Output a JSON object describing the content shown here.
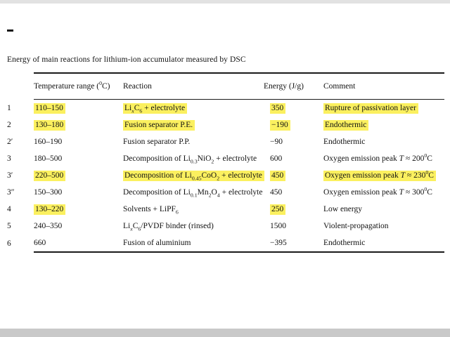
{
  "page": {
    "caption": "Energy of main reactions for lithium-ion accumulator measured by DSC",
    "highlight_color": "#fbf05f"
  },
  "table": {
    "headers": [
      {
        "key": "id",
        "segs": [
          {
            "t": ""
          }
        ]
      },
      {
        "key": "temp",
        "segs": [
          {
            "t": "Temperature range ("
          },
          {
            "t": "0",
            "s": "sup"
          },
          {
            "t": "C)"
          }
        ]
      },
      {
        "key": "reaction",
        "segs": [
          {
            "t": "Reaction"
          }
        ]
      },
      {
        "key": "energy",
        "segs": [
          {
            "t": "Energy (J/g)"
          }
        ]
      },
      {
        "key": "comment",
        "segs": [
          {
            "t": "Comment"
          }
        ]
      }
    ],
    "rows": [
      {
        "id": "1",
        "temp": "110–150",
        "temp_hl": true,
        "reaction": [
          {
            "t": "Li"
          },
          {
            "t": "x",
            "s": "sub",
            "i": true
          },
          {
            "t": "C"
          },
          {
            "t": "6",
            "s": "sub"
          },
          {
            "t": " + electrolyte"
          }
        ],
        "reaction_hl": true,
        "energy": "350",
        "energy_hl": true,
        "comment": [
          {
            "t": "Rupture of passivation layer"
          }
        ],
        "comment_hl": true
      },
      {
        "id": "2",
        "temp": "130–180",
        "temp_hl": true,
        "reaction": [
          {
            "t": "Fusion separator P.E."
          }
        ],
        "reaction_hl": true,
        "energy": "−190",
        "energy_hl": true,
        "comment": [
          {
            "t": "Endothermic"
          }
        ],
        "comment_hl": true
      },
      {
        "id": "2′",
        "temp": "160–190",
        "reaction": [
          {
            "t": "Fusion separator P.P."
          }
        ],
        "energy": "−90",
        "comment": [
          {
            "t": "Endothermic"
          }
        ]
      },
      {
        "id": "3",
        "temp": "180–500",
        "reaction": [
          {
            "t": "Decomposition of Li"
          },
          {
            "t": "0.3",
            "s": "sub"
          },
          {
            "t": "NiO"
          },
          {
            "t": "2",
            "s": "sub"
          },
          {
            "t": " + electrolyte"
          }
        ],
        "energy": "600",
        "comment": [
          {
            "t": "Oxygen emission peak "
          },
          {
            "t": "T",
            "i": true
          },
          {
            "t": " ≈ 200"
          },
          {
            "t": "0",
            "s": "sup"
          },
          {
            "t": "C"
          }
        ]
      },
      {
        "id": "3′",
        "temp": "220–500",
        "temp_hl": true,
        "reaction": [
          {
            "t": "Decomposition of Li"
          },
          {
            "t": "0.45",
            "s": "sub"
          },
          {
            "t": "CoO"
          },
          {
            "t": "2",
            "s": "sub"
          },
          {
            "t": " + electrolyte"
          }
        ],
        "reaction_hl": true,
        "energy": "450",
        "energy_hl": true,
        "comment": [
          {
            "t": "Oxygen emission peak "
          },
          {
            "t": "T",
            "i": true
          },
          {
            "t": " ≈ 230"
          },
          {
            "t": "0",
            "s": "sup"
          },
          {
            "t": "C"
          }
        ],
        "comment_hl": true
      },
      {
        "id": "3″",
        "temp": "150–300",
        "reaction": [
          {
            "t": "Decomposition of Li"
          },
          {
            "t": "0.1",
            "s": "sub"
          },
          {
            "t": "Mn"
          },
          {
            "t": "2",
            "s": "sub"
          },
          {
            "t": "O"
          },
          {
            "t": "4",
            "s": "sub"
          },
          {
            "t": " + electrolyte"
          }
        ],
        "energy": "450",
        "comment": [
          {
            "t": "Oxygen emission peak "
          },
          {
            "t": "T",
            "i": true
          },
          {
            "t": " ≈ 300"
          },
          {
            "t": "0",
            "s": "sup"
          },
          {
            "t": "C"
          }
        ]
      },
      {
        "id": "4",
        "temp": "130–220",
        "temp_hl": true,
        "reaction": [
          {
            "t": "Solvents + LiPF"
          },
          {
            "t": "6",
            "s": "sub"
          }
        ],
        "energy": "250",
        "energy_hl": true,
        "comment": [
          {
            "t": "Low energy"
          }
        ]
      },
      {
        "id": "5",
        "temp": "240–350",
        "reaction": [
          {
            "t": "Li"
          },
          {
            "t": "x",
            "s": "sub",
            "i": true
          },
          {
            "t": "C"
          },
          {
            "t": "6",
            "s": "sub"
          },
          {
            "t": "/PVDF binder (rinsed)"
          }
        ],
        "energy": "1500",
        "comment": [
          {
            "t": "Violent-propagation"
          }
        ]
      },
      {
        "id": "6",
        "temp": "660",
        "reaction": [
          {
            "t": "Fusion of aluminium"
          }
        ],
        "energy": "−395",
        "comment": [
          {
            "t": "Endothermic"
          }
        ]
      }
    ]
  }
}
